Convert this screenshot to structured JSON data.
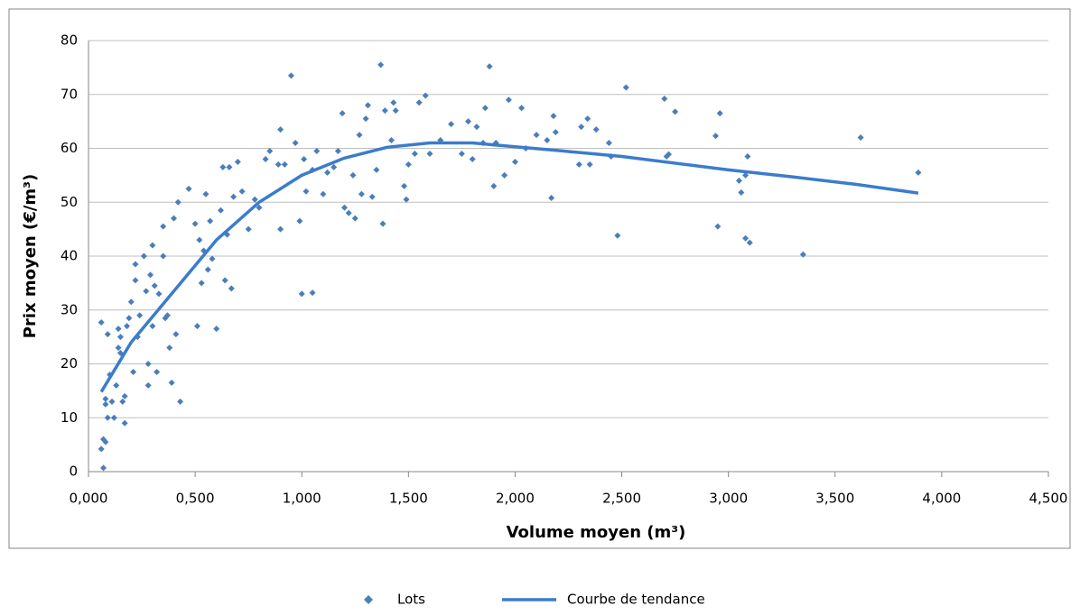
{
  "chart_data": {
    "type": "scatter",
    "x_label": "Volume moyen (m³)",
    "y_label": "Prix moyen (€/m³)",
    "xlim": [
      0,
      4.5
    ],
    "ylim": [
      0,
      80
    ],
    "xticks": [
      {
        "value": 0,
        "label": "0,000"
      },
      {
        "value": 0.5,
        "label": "0,500"
      },
      {
        "value": 1,
        "label": "1,000"
      },
      {
        "value": 1.5,
        "label": "1,500"
      },
      {
        "value": 2,
        "label": "2,000"
      },
      {
        "value": 2.5,
        "label": "2,500"
      },
      {
        "value": 3,
        "label": "3,000"
      },
      {
        "value": 3.5,
        "label": "3,500"
      },
      {
        "value": 4,
        "label": "4,000"
      },
      {
        "value": 4.5,
        "label": "4,500"
      }
    ],
    "yticks": [
      0,
      10,
      20,
      30,
      40,
      50,
      60,
      70,
      80
    ],
    "grid": true,
    "legend": "bottom",
    "series": [
      {
        "name": "Lots",
        "color": "#4a7ebb",
        "mode": "markers",
        "x": [
          0.06,
          0.06,
          0.07,
          0.07,
          0.08,
          0.08,
          0.08,
          0.09,
          0.09,
          0.1,
          0.11,
          0.12,
          0.13,
          0.14,
          0.14,
          0.15,
          0.15,
          0.16,
          0.17,
          0.17,
          0.18,
          0.19,
          0.2,
          0.21,
          0.22,
          0.22,
          0.23,
          0.24,
          0.26,
          0.27,
          0.28,
          0.28,
          0.29,
          0.3,
          0.3,
          0.31,
          0.32,
          0.33,
          0.35,
          0.35,
          0.36,
          0.37,
          0.38,
          0.39,
          0.4,
          0.41,
          0.42,
          0.43,
          0.47,
          0.5,
          0.51,
          0.52,
          0.53,
          0.54,
          0.55,
          0.56,
          0.57,
          0.58,
          0.6,
          0.62,
          0.63,
          0.64,
          0.65,
          0.66,
          0.67,
          0.68,
          0.7,
          0.72,
          0.75,
          0.78,
          0.8,
          0.83,
          0.85,
          0.89,
          0.9,
          0.9,
          0.92,
          0.95,
          0.97,
          0.99,
          1.0,
          1.01,
          1.02,
          1.05,
          1.05,
          1.07,
          1.1,
          1.12,
          1.15,
          1.17,
          1.19,
          1.2,
          1.22,
          1.24,
          1.25,
          1.27,
          1.28,
          1.3,
          1.31,
          1.33,
          1.35,
          1.37,
          1.38,
          1.39,
          1.42,
          1.43,
          1.44,
          1.48,
          1.49,
          1.5,
          1.53,
          1.55,
          1.58,
          1.6,
          1.65,
          1.7,
          1.75,
          1.78,
          1.8,
          1.82,
          1.85,
          1.86,
          1.88,
          1.9,
          1.91,
          1.95,
          1.97,
          2.0,
          2.03,
          2.05,
          2.1,
          2.15,
          2.17,
          2.18,
          2.19,
          2.3,
          2.31,
          2.34,
          2.35,
          2.38,
          2.44,
          2.45,
          2.48,
          2.52,
          2.7,
          2.71,
          2.72,
          2.75,
          2.94,
          2.95,
          2.96,
          3.05,
          3.06,
          3.08,
          3.08,
          3.09,
          3.1,
          3.35,
          3.62,
          3.89
        ],
        "values": [
          27.7,
          4.2,
          0.7,
          6,
          5.5,
          12.5,
          13.5,
          10,
          25.5,
          18,
          13,
          10,
          16,
          23,
          26.5,
          22,
          25,
          13,
          9,
          14,
          27,
          28.5,
          31.5,
          18.5,
          35.5,
          38.5,
          25,
          29,
          40,
          33.5,
          16,
          20,
          36.5,
          42,
          27,
          34.5,
          18.5,
          33,
          45.5,
          40,
          28.5,
          29,
          23,
          16.5,
          47,
          25.5,
          50,
          13,
          52.5,
          46,
          27,
          43,
          35,
          41,
          51.5,
          37.5,
          46.5,
          39.5,
          26.5,
          48.5,
          56.5,
          35.5,
          44,
          56.5,
          34,
          51,
          57.5,
          52,
          45,
          50.5,
          49,
          58,
          59.5,
          57,
          63.5,
          45,
          57,
          73.5,
          61,
          46.5,
          33,
          58,
          52,
          33.2,
          56,
          59.5,
          51.5,
          55.5,
          56.5,
          59.5,
          66.5,
          49,
          48,
          55,
          47,
          62.5,
          51.5,
          65.5,
          68,
          51,
          56,
          75.5,
          46,
          67,
          61.5,
          68.5,
          67,
          53,
          50.5,
          57,
          59,
          68.5,
          69.8,
          59,
          61.5,
          64.5,
          59,
          65,
          58,
          64,
          61,
          67.5,
          75.2,
          53,
          61,
          55,
          69,
          57.5,
          67.5,
          60,
          62.5,
          61.5,
          50.8,
          66,
          63,
          57,
          64,
          65.5,
          57,
          63.5,
          61,
          58.5,
          43.8,
          71.3,
          69.2,
          58.5,
          58.9,
          66.8,
          62.3,
          45.5,
          66.5,
          54,
          51.8,
          43.3,
          55,
          58.5,
          42.5,
          40.3,
          62,
          55.5
        ]
      },
      {
        "name": "Courbe de tendance",
        "color": "#3b7ccb",
        "mode": "line",
        "x": [
          0.06,
          0.2,
          0.4,
          0.6,
          0.8,
          1.0,
          1.2,
          1.4,
          1.6,
          1.8,
          2.0,
          2.2,
          2.5,
          2.8,
          3.0,
          3.3,
          3.6,
          3.89
        ],
        "values": [
          14.8,
          24,
          33.5,
          43,
          50,
          55,
          58.2,
          60.2,
          61,
          61,
          60.3,
          59.6,
          58.5,
          57,
          56,
          54.7,
          53.3,
          51.7
        ]
      }
    ]
  }
}
